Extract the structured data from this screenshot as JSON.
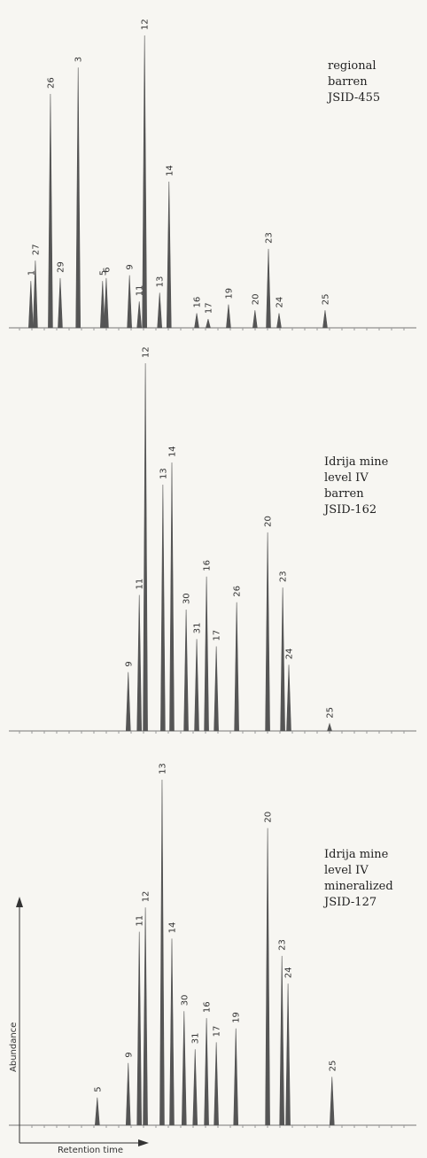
{
  "chart_data": [
    {
      "type": "peaks",
      "sample": [
        "regional",
        "barren",
        "JSID-455"
      ],
      "categories": [
        "1",
        "27",
        "26",
        "29",
        "3",
        "5",
        "6",
        "9",
        "11",
        "12",
        "13",
        "14",
        "16",
        "17",
        "19",
        "20",
        "23",
        "24",
        "25"
      ],
      "x": [
        5.4,
        6.5,
        10.2,
        12.6,
        17,
        23,
        23.9,
        29.6,
        32,
        33.3,
        37,
        39.3,
        46.1,
        48.9,
        53.9,
        60.4,
        63.7,
        66.3,
        77.6
      ],
      "values": [
        16,
        23,
        80,
        17,
        89,
        16,
        17,
        18,
        9,
        100,
        12,
        50,
        5,
        3,
        8,
        6,
        27,
        5,
        6
      ],
      "xlim": [
        0,
        100
      ],
      "ylim": [
        0,
        100
      ],
      "color": "#555555"
    },
    {
      "type": "peaks",
      "sample": [
        "Idrija mine",
        "level IV",
        "barren",
        "JSID-162"
      ],
      "categories": [
        "9",
        "11",
        "12",
        "13",
        "14",
        "30",
        "31",
        "16",
        "17",
        "26",
        "20",
        "23",
        "24",
        "25"
      ],
      "x": [
        29.3,
        32,
        33.5,
        37.8,
        40,
        43.5,
        46.1,
        48.5,
        50.9,
        55.9,
        63.5,
        67.2,
        68.7,
        78.7
      ],
      "values": [
        16,
        37,
        100,
        67,
        73,
        33,
        25,
        42,
        23,
        35,
        54,
        39,
        18,
        2
      ],
      "xlim": [
        0,
        100
      ],
      "ylim": [
        0,
        100
      ],
      "color": "#555555"
    },
    {
      "type": "peaks",
      "sample": [
        "Idrija mine",
        "level IV",
        "mineralized",
        "JSID-127"
      ],
      "categories": [
        "5",
        "9",
        "11",
        "12",
        "13",
        "14",
        "30",
        "31",
        "16",
        "17",
        "19",
        "20",
        "23",
        "24",
        "25"
      ],
      "x": [
        21.7,
        29.3,
        32,
        33.5,
        37.6,
        40,
        43,
        45.7,
        48.5,
        50.9,
        55.7,
        63.5,
        67,
        68.5,
        79.3
      ],
      "values": [
        8,
        18,
        56,
        63,
        100,
        54,
        33,
        22,
        31,
        24,
        28,
        86,
        49,
        41,
        14
      ],
      "xlim": [
        0,
        100
      ],
      "ylim": [
        0,
        100
      ],
      "color": "#555555",
      "y_label": "Abundance",
      "x_label": "Retention time"
    }
  ]
}
